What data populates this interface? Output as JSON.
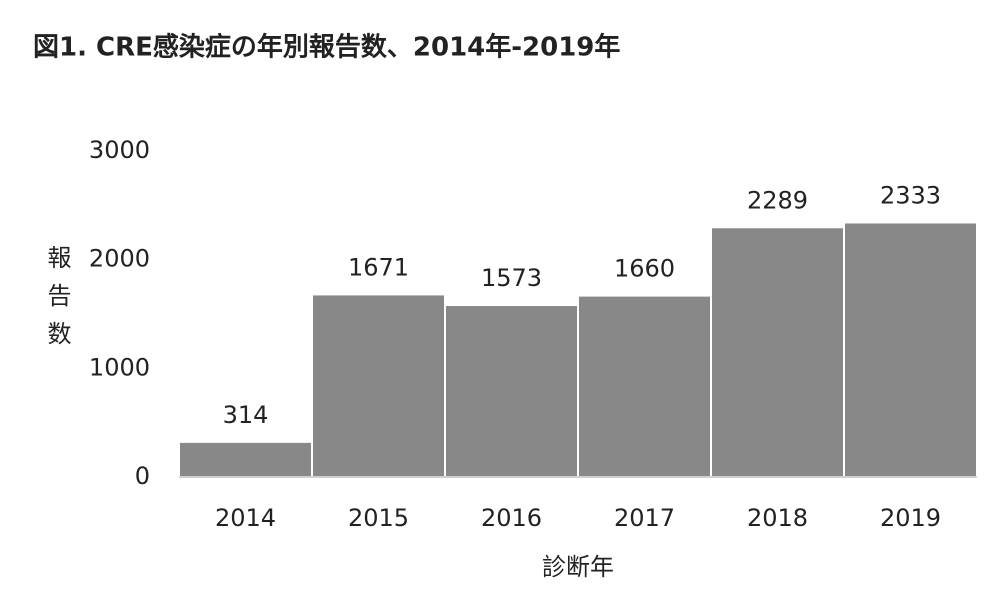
{
  "chart_data": {
    "type": "bar",
    "title": "図1. CRE感染症の年別報告数、2014年-2019年",
    "x_label": "診断年",
    "y_label": "報告数",
    "categories": [
      "2014",
      "2015",
      "2016",
      "2017",
      "2018",
      "2019"
    ],
    "values": [
      314,
      1671,
      1573,
      1660,
      2289,
      2333
    ],
    "color": "#888888",
    "ylim": [
      0,
      3000
    ],
    "yticks": [
      0,
      1000,
      2000,
      3000
    ],
    "grid": false
  }
}
